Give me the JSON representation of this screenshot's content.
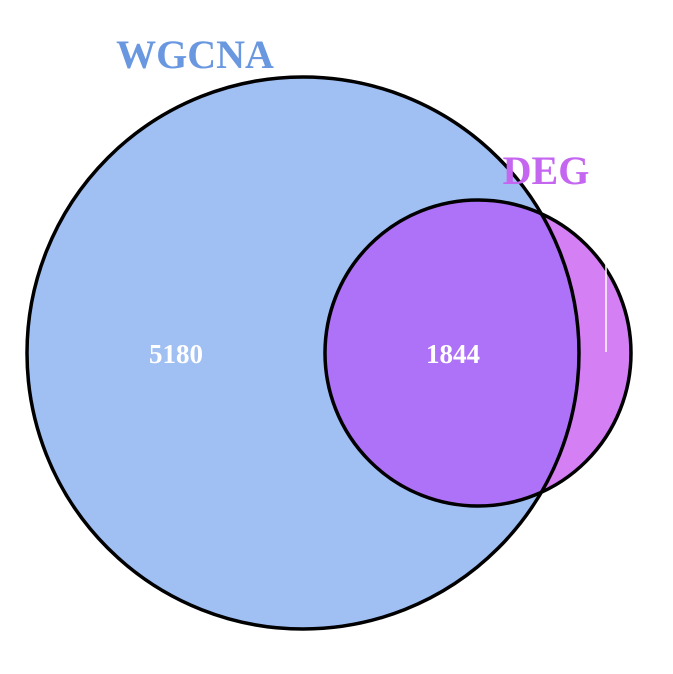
{
  "venn": {
    "sets": [
      {
        "name": "WGCNA",
        "color": "#a0bff3",
        "label_color": "#6a98e0"
      },
      {
        "name": "DEG",
        "color": "#d57ff5",
        "label_color": "#c466f0"
      }
    ],
    "overlap_color": "#ae72f8",
    "outline_color": "#000000",
    "regions": {
      "wgcna_only": "5180",
      "intersection": "1844",
      "deg_only": ""
    }
  }
}
